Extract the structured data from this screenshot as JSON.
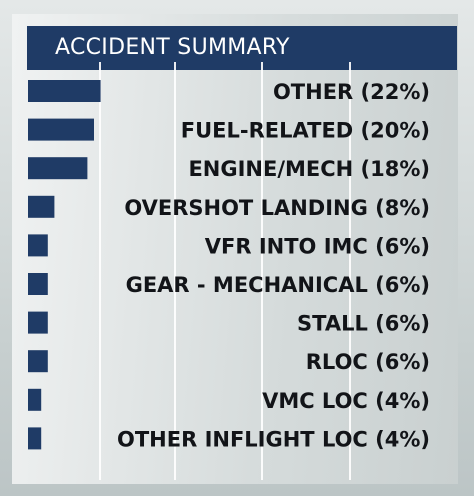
{
  "chart_data": {
    "type": "bar",
    "orientation": "horizontal",
    "title": "ACCIDENT SUMMARY",
    "categories": [
      "OTHER",
      "FUEL-RELATED",
      "ENGINE/MECH",
      "OVERSHOT LANDING",
      "VFR INTO IMC",
      "GEAR - MECHANICAL",
      "STALL",
      "RLOC",
      "VMC LOC",
      "OTHER INFLIGHT LOC"
    ],
    "labels": [
      "OTHER (22%)",
      "FUEL-RELATED (20%)",
      "ENGINE/MECH (18%)",
      "OVERSHOT LANDING (8%)",
      "VFR INTO IMC (6%)",
      "GEAR - MECHANICAL (6%)",
      "STALL (6%)",
      "RLOC (6%)",
      "VMC LOC (4%)",
      "OTHER INFLIGHT LOC (4%)"
    ],
    "values": [
      22,
      20,
      18,
      8,
      6,
      6,
      6,
      6,
      4,
      4
    ],
    "unit": "%",
    "bar_color": "#1f3b66",
    "grid": true
  }
}
